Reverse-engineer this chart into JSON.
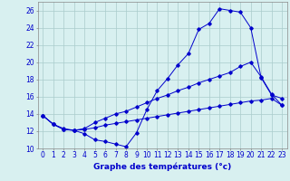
{
  "xlabel": "Graphe des températures (°c)",
  "background_color": "#d8f0f0",
  "grid_color": "#aacccc",
  "line_color": "#0000cc",
  "xlim": [
    -0.5,
    23.5
  ],
  "ylim": [
    10,
    27
  ],
  "yticks": [
    10,
    12,
    14,
    16,
    18,
    20,
    22,
    24,
    26
  ],
  "xticks": [
    0,
    1,
    2,
    3,
    4,
    5,
    6,
    7,
    8,
    9,
    10,
    11,
    12,
    13,
    14,
    15,
    16,
    17,
    18,
    19,
    20,
    21,
    22,
    23
  ],
  "line1_x": [
    0,
    1,
    2,
    3,
    4,
    5,
    6,
    7,
    8,
    9,
    10,
    11,
    12,
    13,
    14,
    15,
    16,
    17,
    18,
    19,
    20,
    21,
    22,
    23
  ],
  "line1_y": [
    13.8,
    12.8,
    12.3,
    12.1,
    11.7,
    11.0,
    10.8,
    10.5,
    10.2,
    11.8,
    14.5,
    16.7,
    18.1,
    19.7,
    21.0,
    23.8,
    24.5,
    26.2,
    26.0,
    25.8,
    24.0,
    18.2,
    16.2,
    15.8
  ],
  "line2_x": [
    0,
    1,
    2,
    3,
    4,
    5,
    6,
    7,
    8,
    9,
    10,
    11,
    12,
    13,
    14,
    15,
    16,
    17,
    18,
    19,
    20,
    21,
    22,
    23
  ],
  "line2_y": [
    13.8,
    12.8,
    12.2,
    12.1,
    12.3,
    13.0,
    13.5,
    14.0,
    14.3,
    14.8,
    15.3,
    15.8,
    16.2,
    16.7,
    17.1,
    17.6,
    18.0,
    18.4,
    18.8,
    19.5,
    20.0,
    18.3,
    16.3,
    15.0
  ],
  "line3_x": [
    0,
    1,
    2,
    3,
    4,
    5,
    6,
    7,
    8,
    9,
    10,
    11,
    12,
    13,
    14,
    15,
    16,
    17,
    18,
    19,
    20,
    21,
    22,
    23
  ],
  "line3_y": [
    13.8,
    12.8,
    12.2,
    12.1,
    12.2,
    12.4,
    12.7,
    12.9,
    13.1,
    13.3,
    13.5,
    13.7,
    13.9,
    14.1,
    14.3,
    14.5,
    14.7,
    14.9,
    15.1,
    15.3,
    15.5,
    15.6,
    15.8,
    15.0
  ],
  "xlabel_fontsize": 6.5,
  "tick_fontsize": 5.5
}
